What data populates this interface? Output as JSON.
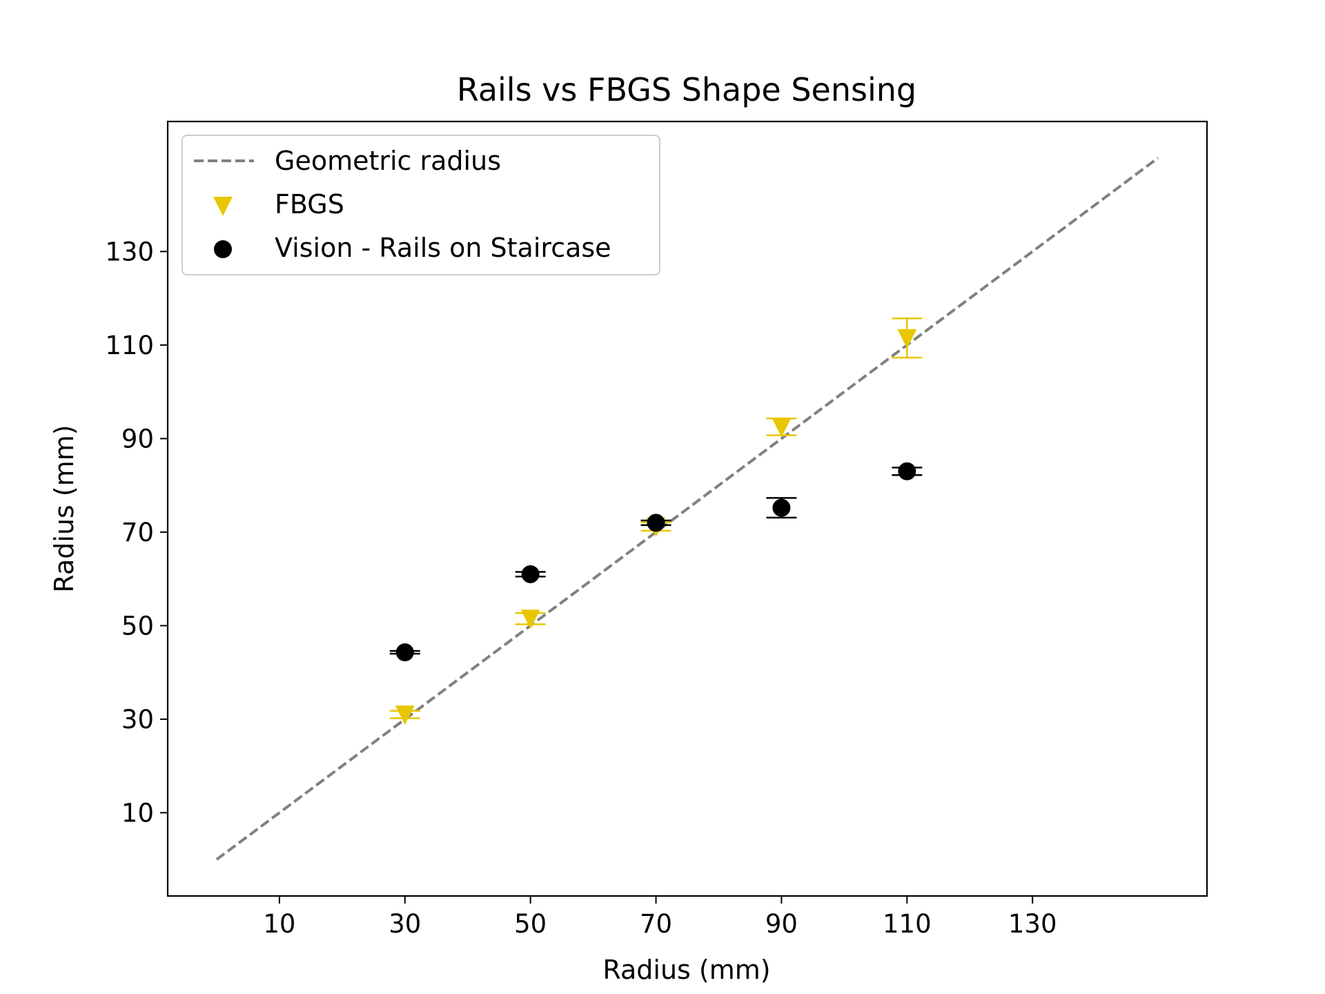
{
  "chart_data": {
    "type": "scatter",
    "title": "Rails vs FBGS Shape Sensing",
    "xlabel": "Radius (mm)",
    "ylabel": "Radius (mm)",
    "xlim": [
      -7.8,
      157.8
    ],
    "ylim": [
      -7.8,
      157.8
    ],
    "xticks": [
      10,
      30,
      50,
      70,
      90,
      110,
      130
    ],
    "yticks": [
      10,
      30,
      50,
      70,
      90,
      110,
      130
    ],
    "grid": false,
    "legend_position": "upper-left",
    "series": [
      {
        "name": "Geometric radius",
        "kind": "line",
        "style": "dashed",
        "color": "#808080",
        "x": [
          0,
          150
        ],
        "y": [
          0,
          150
        ]
      },
      {
        "name": "FBGS",
        "kind": "errorbar",
        "marker": "triangle-down",
        "color": "#E8C600",
        "x": [
          30,
          50,
          70,
          90,
          110
        ],
        "y": [
          31,
          51.5,
          71.2,
          92.5,
          111.5
        ],
        "yerr": [
          0.8,
          1.2,
          0.9,
          1.8,
          4.2
        ]
      },
      {
        "name": "Vision - Rails on Staircase",
        "kind": "errorbar",
        "marker": "circle",
        "color": "#000000",
        "x": [
          30,
          50,
          70,
          90,
          110
        ],
        "y": [
          44.3,
          61,
          72,
          75.2,
          83
        ],
        "yerr": [
          0.3,
          0.5,
          0.5,
          2.1,
          0.8
        ]
      }
    ]
  }
}
